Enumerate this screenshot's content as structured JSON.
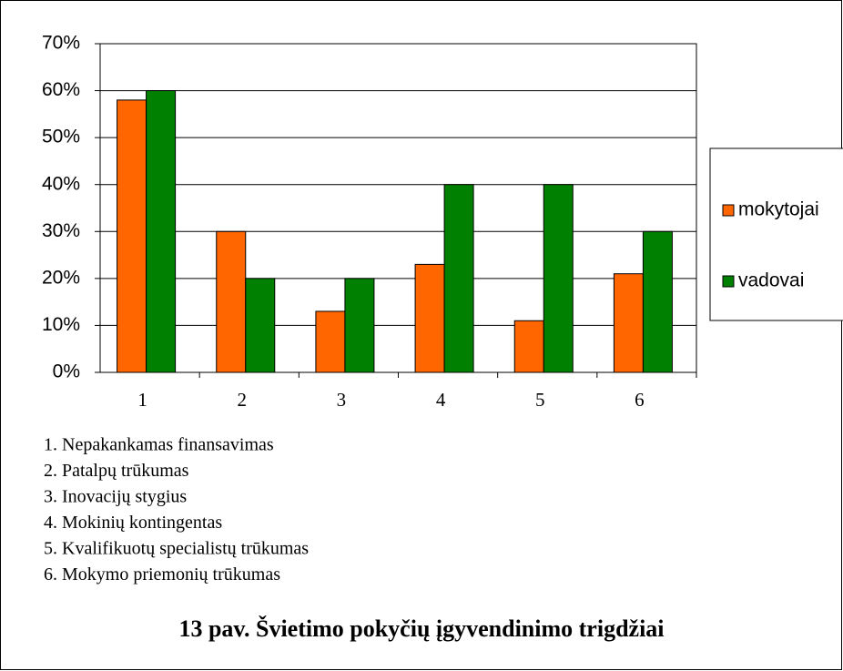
{
  "chart_data": {
    "type": "bar",
    "categories": [
      "1",
      "2",
      "3",
      "4",
      "5",
      "6"
    ],
    "series": [
      {
        "name": "mokytojai",
        "color": "#ff6600",
        "values": [
          58,
          30,
          13,
          23,
          11,
          21
        ]
      },
      {
        "name": "vadovai",
        "color": "#008000",
        "values": [
          60,
          20,
          20,
          40,
          40,
          30
        ]
      }
    ],
    "ylim": [
      0,
      70
    ],
    "yticks": [
      {
        "value": 0,
        "label": "0%"
      },
      {
        "value": 10,
        "label": "10%"
      },
      {
        "value": 20,
        "label": "20%"
      },
      {
        "value": 30,
        "label": "30%"
      },
      {
        "value": 40,
        "label": "40%"
      },
      {
        "value": 50,
        "label": "50%"
      },
      {
        "value": 60,
        "label": "60%"
      },
      {
        "value": 70,
        "label": "70%"
      }
    ],
    "grid": true,
    "legend": "right",
    "notes": [
      "1. Nepakankamas finansavimas",
      "2. Patalpų trūkumas",
      "3. Inovacijų stygius",
      "4. Mokinių kontingentas",
      "5. Kvalifikuotų specialistų trūkumas",
      "6. Mokymo priemonių trūkumas"
    ],
    "caption": "13 pav. Švietimo pokyčių įgyvendinimo trigdžiai"
  }
}
